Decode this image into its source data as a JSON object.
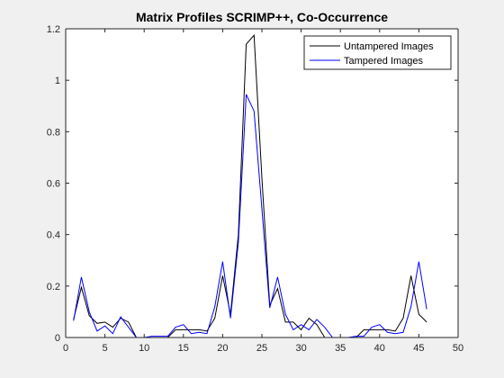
{
  "chart_data": {
    "type": "line",
    "title": "Matrix Profiles SCRIMP++, Co-Occurrence",
    "xlabel": "",
    "ylabel": "",
    "xlim": [
      0,
      50
    ],
    "ylim": [
      0,
      1.2
    ],
    "xticks": [
      0,
      5,
      10,
      15,
      20,
      25,
      30,
      35,
      40,
      45,
      50
    ],
    "yticks": [
      0,
      0.2,
      0.4,
      0.6,
      0.8,
      1,
      1.2
    ],
    "xtick_labels": [
      "0",
      "5",
      "10",
      "15",
      "20",
      "25",
      "30",
      "35",
      "40",
      "45",
      "50"
    ],
    "ytick_labels": [
      "0",
      "0.2",
      "0.4",
      "0.6",
      "0.8",
      "1",
      "1.2"
    ],
    "grid": false,
    "legend_position": "top-right",
    "x": [
      1,
      2,
      3,
      4,
      5,
      6,
      7,
      8,
      9,
      10,
      11,
      12,
      13,
      14,
      15,
      16,
      17,
      18,
      19,
      20,
      21,
      22,
      23,
      24,
      25,
      26,
      27,
      28,
      29,
      30,
      31,
      32,
      33,
      34,
      35,
      36,
      37,
      38,
      39,
      40,
      41,
      42,
      43,
      44,
      45,
      46
    ],
    "series": [
      {
        "name": "Untampered Images",
        "color": "#000000",
        "values": [
          0.07,
          0.195,
          0.085,
          0.055,
          0.06,
          0.04,
          0.075,
          0.06,
          0.0,
          0.0,
          0.0,
          0.0,
          0.0,
          0.03,
          0.03,
          0.03,
          0.03,
          0.025,
          0.075,
          0.24,
          0.09,
          0.4,
          1.14,
          1.175,
          0.62,
          0.125,
          0.19,
          0.06,
          0.06,
          0.03,
          0.075,
          0.05,
          0.0,
          0.0,
          0.0,
          0.0,
          0.0,
          0.03,
          0.03,
          0.03,
          0.03,
          0.025,
          0.075,
          0.24,
          0.09,
          0.06
        ]
      },
      {
        "name": "Tampered Images",
        "color": "#0000ff",
        "values": [
          0.065,
          0.235,
          0.1,
          0.025,
          0.045,
          0.015,
          0.08,
          0.04,
          0.0,
          0.0,
          0.005,
          0.005,
          0.005,
          0.04,
          0.05,
          0.015,
          0.02,
          0.015,
          0.12,
          0.295,
          0.075,
          0.37,
          0.945,
          0.88,
          0.5,
          0.115,
          0.235,
          0.09,
          0.03,
          0.05,
          0.03,
          0.07,
          0.04,
          0.0,
          0.0,
          0.0,
          0.005,
          0.005,
          0.04,
          0.05,
          0.02,
          0.015,
          0.02,
          0.12,
          0.295,
          0.11
        ]
      }
    ]
  }
}
